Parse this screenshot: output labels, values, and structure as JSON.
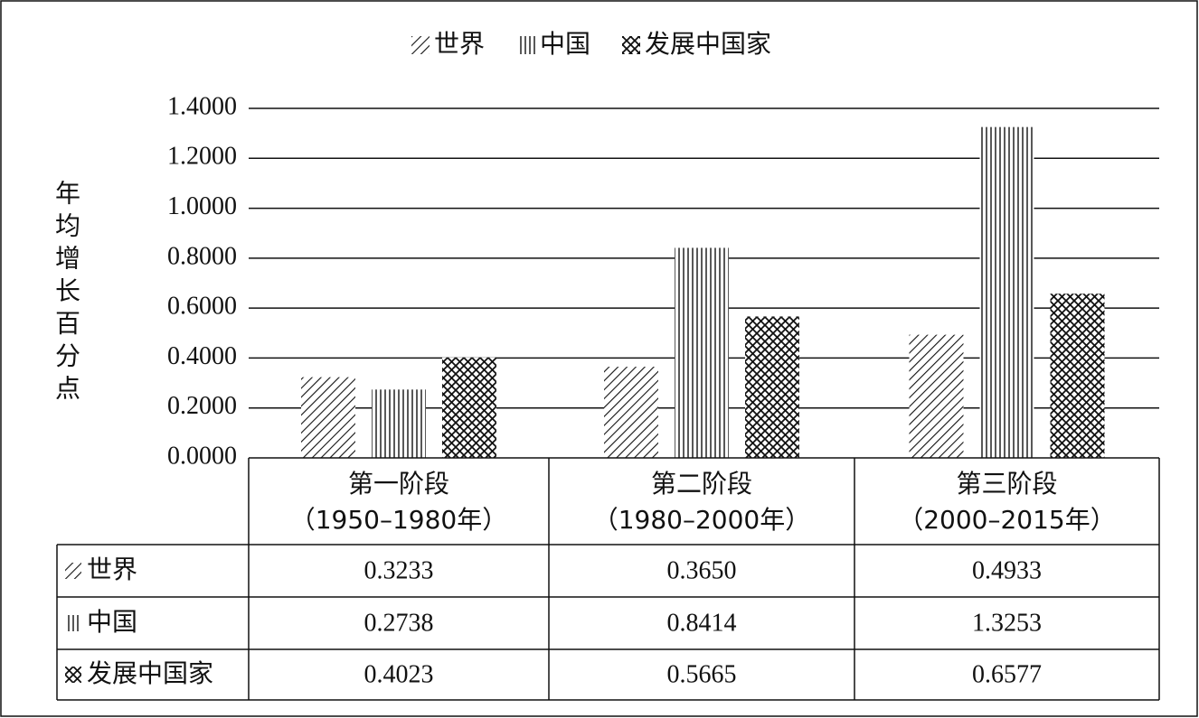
{
  "chart_data": {
    "type": "bar",
    "y_label": "年均增长百分点",
    "categories": [
      "第一阶段",
      "第二阶段",
      "第三阶段"
    ],
    "periods": [
      "（1950–1980年）",
      "（1980–2000年）",
      "（2000–2015年）"
    ],
    "series": [
      {
        "name": "世界",
        "pattern": "diagonal",
        "values": [
          0.3233,
          0.365,
          0.4933
        ],
        "value_labels": [
          "0.3233",
          "0.3650",
          "0.4933"
        ]
      },
      {
        "name": "中国",
        "pattern": "vertical",
        "values": [
          0.2738,
          0.8414,
          1.3253
        ],
        "value_labels": [
          "0.2738",
          "0.8414",
          "1.3253"
        ]
      },
      {
        "name": "发展中国家",
        "pattern": "crosshatch",
        "values": [
          0.4023,
          0.5665,
          0.6577
        ],
        "value_labels": [
          "0.4023",
          "0.5665",
          "0.6577"
        ]
      }
    ],
    "ylim": [
      0,
      1.4
    ],
    "yticks": [
      {
        "value": 0,
        "label": "0.0000"
      },
      {
        "value": 0.2,
        "label": "0.2000"
      },
      {
        "value": 0.4,
        "label": "0.4000"
      },
      {
        "value": 0.6,
        "label": "0.6000"
      },
      {
        "value": 0.8,
        "label": "0.8000"
      },
      {
        "value": 1.0,
        "label": "1.0000"
      },
      {
        "value": 1.2,
        "label": "1.2000"
      },
      {
        "value": 1.4,
        "label": "1.4000"
      }
    ],
    "grid": true,
    "legend": "top"
  }
}
